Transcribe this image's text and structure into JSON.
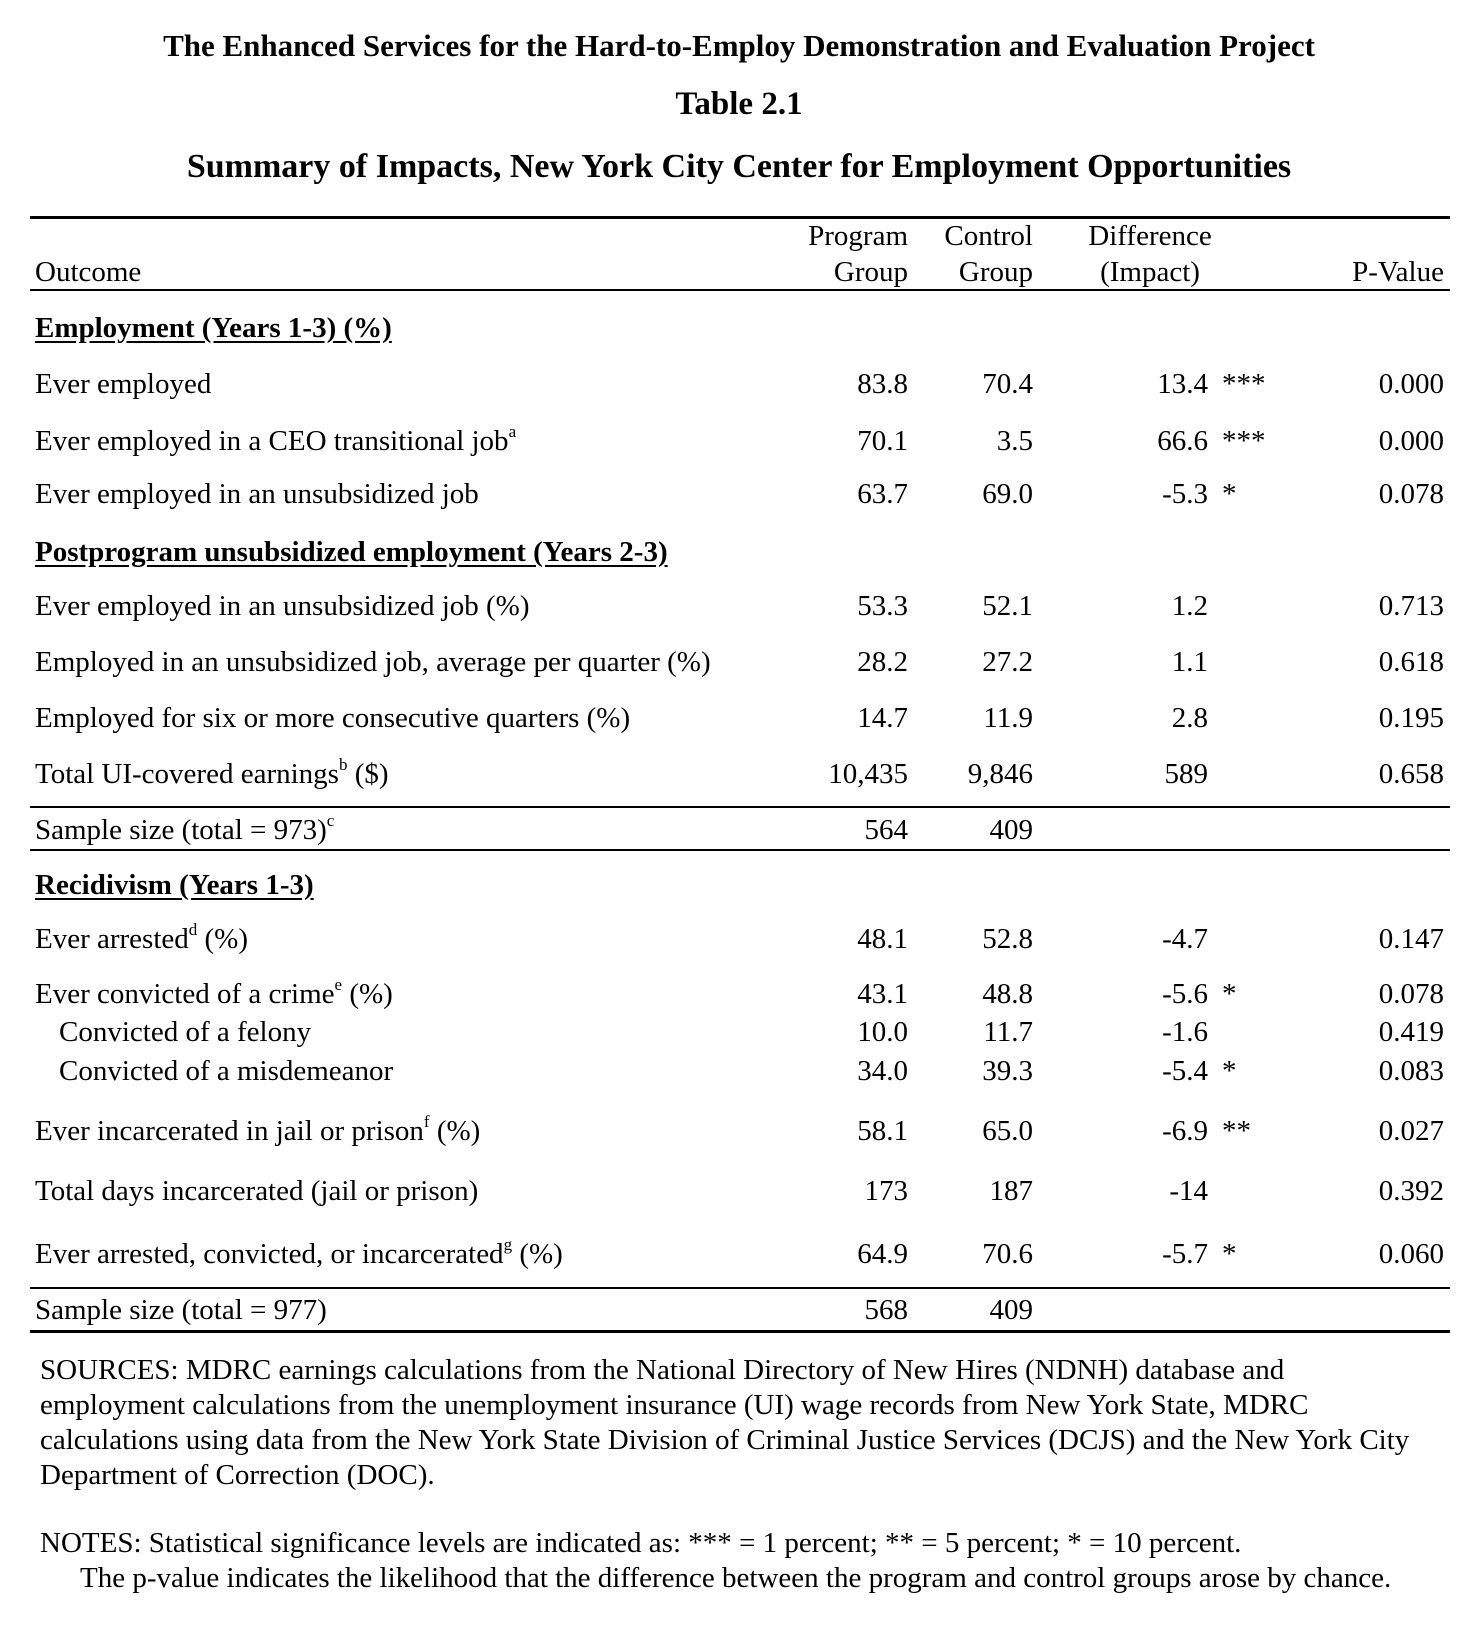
{
  "title": {
    "project": "The Enhanced Services for the Hard-to-Employ Demonstration and Evaluation Project",
    "table_number": "Table 2.1",
    "subtitle": "Summary of Impacts, New York City Center for Employment Opportunities"
  },
  "columns": {
    "outcome": "Outcome",
    "program_line1": "Program",
    "program_line2": "Group",
    "control_line1": "Control",
    "control_line2": "Group",
    "difference_line1": "Difference",
    "difference_line2": "(Impact)",
    "pvalue": "P-Value"
  },
  "sections": {
    "employment": "Employment (Years 1-3) (%)",
    "postprogram": "Postprogram unsubsidized employment  (Years 2-3)",
    "recidivism": "Recidivism (Years 1-3)"
  },
  "rows": [
    {
      "label": "Ever employed",
      "program": "83.8",
      "control": "70.4",
      "diff": "13.4",
      "stars": "***",
      "pvalue": "0.000"
    },
    {
      "label": "Ever employed in a CEO transitional job",
      "sup": "a",
      "program": "70.1",
      "control": "3.5",
      "diff": "66.6",
      "stars": "***",
      "pvalue": "0.000"
    },
    {
      "label": "Ever employed in an unsubsidized job",
      "program": "63.7",
      "control": "69.0",
      "diff": "-5.3",
      "stars": "*",
      "pvalue": "0.078"
    },
    {
      "label": "Ever employed in an unsubsidized job (%)",
      "program": "53.3",
      "control": "52.1",
      "diff": "1.2",
      "stars": "",
      "pvalue": "0.713"
    },
    {
      "label": "Employed in an unsubsidized job, average per quarter (%)",
      "program": "28.2",
      "control": "27.2",
      "diff": "1.1",
      "stars": "",
      "pvalue": "0.618"
    },
    {
      "label": "Employed for six or more consecutive quarters (%)",
      "program": "14.7",
      "control": "11.9",
      "diff": "2.8",
      "stars": "",
      "pvalue": "0.195"
    },
    {
      "label": "Total UI-covered earnings",
      "sup": "b",
      "suffix": " ($)",
      "program": "10,435",
      "control": "9,846",
      "diff": "589",
      "stars": "",
      "pvalue": "0.658"
    },
    {
      "label": "Sample size (total = 973)",
      "sup": "c",
      "program": "564",
      "control": "409",
      "diff": "",
      "stars": "",
      "pvalue": ""
    },
    {
      "label": "Ever arrested",
      "sup": "d",
      "suffix": " (%)",
      "program": "48.1",
      "control": "52.8",
      "diff": "-4.7",
      "stars": "",
      "pvalue": "0.147"
    },
    {
      "label": "Ever convicted of a crime",
      "sup": "e",
      "suffix": " (%)",
      "program": "43.1",
      "control": "48.8",
      "diff": "-5.6",
      "stars": "*",
      "pvalue": "0.078"
    },
    {
      "label": "Convicted of a felony",
      "program": "10.0",
      "control": "11.7",
      "diff": "-1.6",
      "stars": "",
      "pvalue": "0.419"
    },
    {
      "label": "Convicted of a misdemeanor",
      "program": "34.0",
      "control": "39.3",
      "diff": "-5.4",
      "stars": "*",
      "pvalue": "0.083"
    },
    {
      "label": "Ever incarcerated in jail or prison",
      "sup": "f",
      "suffix": " (%)",
      "program": "58.1",
      "control": "65.0",
      "diff": "-6.9",
      "stars": "**",
      "pvalue": "0.027"
    },
    {
      "label": "Total days incarcerated (jail or prison)",
      "program": "173",
      "control": "187",
      "diff": "-14",
      "stars": "",
      "pvalue": "0.392"
    },
    {
      "label": "Ever arrested, convicted, or incarcerated",
      "sup": "g",
      "suffix": " (%)",
      "program": "64.9",
      "control": "70.6",
      "diff": "-5.7",
      "stars": "*",
      "pvalue": "0.060"
    },
    {
      "label": "Sample size (total = 977)",
      "program": "568",
      "control": "409",
      "diff": "",
      "stars": "",
      "pvalue": ""
    }
  ],
  "footnotes": {
    "sources": "SOURCES: MDRC earnings calculations from the National Directory of New Hires (NDNH) database and employment calculations from the unemployment insurance (UI) wage records from New York State, MDRC calculations using data from the New York State Division of Criminal Justice Services (DCJS) and the New York City Department of Correction (DOC).",
    "notes_line1": "NOTES: Statistical significance levels are indicated as: *** = 1 percent; ** = 5 percent; * = 10 percent.",
    "notes_line2": "The p-value indicates the likelihood that the difference between the program and control groups arose by chance."
  }
}
